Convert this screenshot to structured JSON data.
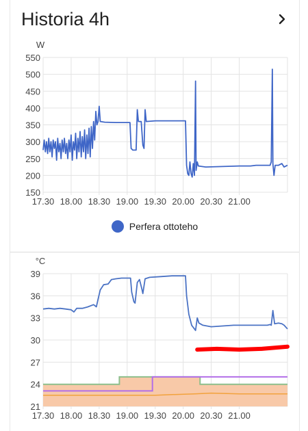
{
  "card": {
    "title": "Historia 4h",
    "nav_icon": "chevron-right-icon"
  },
  "colors": {
    "power_line": "#3f66c7",
    "temp_line": "#4a72c4",
    "green_line": "#8cbf8c",
    "purple_line": "#b26ee8",
    "orange_line": "#f2a23c",
    "fill": "#f8c9a8",
    "red_mark": "#ff0000",
    "grid": "#e3e3e3"
  },
  "chart_data": [
    {
      "type": "line",
      "unit_label": "W",
      "x_ticks": [
        "17.30",
        "18.00",
        "18.30",
        "19.00",
        "19.30",
        "20.00",
        "20.30",
        "21.00"
      ],
      "x_tick_hours": [
        17.5,
        18.0,
        18.5,
        19.0,
        19.5,
        20.0,
        20.5,
        21.0
      ],
      "xlim_hours": [
        17.5,
        21.86
      ],
      "y_ticks": [
        150,
        200,
        250,
        300,
        350,
        400,
        450,
        500,
        550
      ],
      "ylim": [
        150,
        550
      ],
      "grid": true,
      "legend": "bottom-center",
      "series": [
        {
          "name": "Perfera ottoteho",
          "points": [
            [
              17.5,
              275
            ],
            [
              17.52,
              305
            ],
            [
              17.54,
              270
            ],
            [
              17.56,
              300
            ],
            [
              17.58,
              265
            ],
            [
              17.6,
              310
            ],
            [
              17.62,
              270
            ],
            [
              17.64,
              300
            ],
            [
              17.66,
              255
            ],
            [
              17.68,
              305
            ],
            [
              17.7,
              280
            ],
            [
              17.72,
              300
            ],
            [
              17.74,
              245
            ],
            [
              17.76,
              310
            ],
            [
              17.78,
              270
            ],
            [
              17.8,
              295
            ],
            [
              17.82,
              250
            ],
            [
              17.84,
              305
            ],
            [
              17.86,
              270
            ],
            [
              17.88,
              310
            ],
            [
              17.9,
              265
            ],
            [
              17.92,
              295
            ],
            [
              17.94,
              250
            ],
            [
              17.96,
              305
            ],
            [
              17.98,
              270
            ],
            [
              18.0,
              320
            ],
            [
              18.02,
              245
            ],
            [
              18.04,
              300
            ],
            [
              18.06,
              275
            ],
            [
              18.08,
              325
            ],
            [
              18.1,
              250
            ],
            [
              18.12,
              310
            ],
            [
              18.14,
              270
            ],
            [
              18.16,
              330
            ],
            [
              18.18,
              255
            ],
            [
              18.2,
              315
            ],
            [
              18.22,
              270
            ],
            [
              18.24,
              335
            ],
            [
              18.26,
              250
            ],
            [
              18.28,
              320
            ],
            [
              18.3,
              265
            ],
            [
              18.32,
              340
            ],
            [
              18.34,
              255
            ],
            [
              18.36,
              345
            ],
            [
              18.38,
              280
            ],
            [
              18.4,
              360
            ],
            [
              18.42,
              305
            ],
            [
              18.44,
              390
            ],
            [
              18.46,
              350
            ],
            [
              18.48,
              360
            ],
            [
              18.5,
              405
            ],
            [
              18.52,
              360
            ],
            [
              18.6,
              358
            ],
            [
              18.8,
              357
            ],
            [
              19.0,
              357
            ],
            [
              19.05,
              357
            ],
            [
              19.07,
              280
            ],
            [
              19.1,
              275
            ],
            [
              19.16,
              275
            ],
            [
              19.18,
              395
            ],
            [
              19.2,
              360
            ],
            [
              19.25,
              360
            ],
            [
              19.28,
              290
            ],
            [
              19.3,
              280
            ],
            [
              19.32,
              395
            ],
            [
              19.34,
              360
            ],
            [
              19.5,
              362
            ],
            [
              19.7,
              362
            ],
            [
              19.95,
              362
            ],
            [
              20.04,
              362
            ],
            [
              20.06,
              230
            ],
            [
              20.08,
              205
            ],
            [
              20.1,
              200
            ],
            [
              20.12,
              240
            ],
            [
              20.14,
              205
            ],
            [
              20.16,
              195
            ],
            [
              20.18,
              235
            ],
            [
              20.2,
              200
            ],
            [
              20.22,
              480
            ],
            [
              20.23,
              215
            ],
            [
              20.25,
              240
            ],
            [
              20.27,
              228
            ],
            [
              20.4,
              225
            ],
            [
              20.6,
              226
            ],
            [
              20.8,
              227
            ],
            [
              21.0,
              228
            ],
            [
              21.1,
              228
            ],
            [
              21.2,
              228
            ],
            [
              21.3,
              230
            ],
            [
              21.4,
              230
            ],
            [
              21.5,
              230
            ],
            [
              21.55,
              230
            ],
            [
              21.57,
              240
            ],
            [
              21.59,
              515
            ],
            [
              21.6,
              235
            ],
            [
              21.62,
              200
            ],
            [
              21.64,
              230
            ],
            [
              21.7,
              230
            ],
            [
              21.76,
              235
            ],
            [
              21.8,
              225
            ],
            [
              21.86,
              230
            ]
          ]
        }
      ]
    },
    {
      "type": "line",
      "unit_label": "°C",
      "x_ticks": [
        "17.30",
        "18.00",
        "18.30",
        "19.00",
        "19.30",
        "20.00",
        "20.30",
        "21.00"
      ],
      "x_tick_hours": [
        17.5,
        18.0,
        18.5,
        19.0,
        19.5,
        20.0,
        20.5,
        21.0
      ],
      "xlim_hours": [
        17.5,
        21.86
      ],
      "y_ticks": [
        21,
        24,
        27,
        30,
        33,
        36,
        39
      ],
      "ylim": [
        21,
        39
      ],
      "grid": true,
      "series": [
        {
          "points": [
            [
              17.5,
              34.2
            ],
            [
              17.6,
              34.3
            ],
            [
              17.7,
              34.2
            ],
            [
              17.8,
              34.3
            ],
            [
              17.9,
              34.2
            ],
            [
              18.0,
              34.1
            ],
            [
              18.05,
              33.8
            ],
            [
              18.1,
              34.3
            ],
            [
              18.2,
              34.3
            ],
            [
              18.3,
              34.5
            ],
            [
              18.4,
              34.8
            ],
            [
              18.45,
              34.5
            ],
            [
              18.48,
              35.5
            ],
            [
              18.52,
              36.8
            ],
            [
              18.58,
              37.5
            ],
            [
              18.66,
              37.6
            ],
            [
              18.72,
              38.2
            ],
            [
              18.8,
              38.3
            ],
            [
              18.9,
              38.4
            ],
            [
              19.0,
              38.4
            ],
            [
              19.06,
              38.4
            ],
            [
              19.08,
              36.5
            ],
            [
              19.12,
              35.2
            ],
            [
              19.14,
              35.0
            ],
            [
              19.18,
              37.8
            ],
            [
              19.22,
              38.2
            ],
            [
              19.26,
              37.0
            ],
            [
              19.28,
              36.3
            ],
            [
              19.32,
              38.3
            ],
            [
              19.4,
              38.5
            ],
            [
              19.6,
              38.6
            ],
            [
              19.8,
              38.7
            ],
            [
              20.0,
              38.7
            ],
            [
              20.04,
              38.7
            ],
            [
              20.06,
              36.0
            ],
            [
              20.1,
              33.5
            ],
            [
              20.15,
              32.0
            ],
            [
              20.2,
              31.5
            ],
            [
              20.22,
              31.3
            ],
            [
              20.25,
              33.0
            ],
            [
              20.28,
              32.3
            ],
            [
              20.35,
              32.0
            ],
            [
              20.5,
              31.8
            ],
            [
              20.7,
              31.9
            ],
            [
              20.9,
              32.0
            ],
            [
              21.1,
              32.0
            ],
            [
              21.3,
              32.0
            ],
            [
              21.5,
              32.0
            ],
            [
              21.55,
              32.1
            ],
            [
              21.57,
              32.0
            ],
            [
              21.6,
              34.0
            ],
            [
              21.63,
              32.2
            ],
            [
              21.7,
              32.3
            ],
            [
              21.76,
              32.2
            ],
            [
              21.8,
              32.0
            ],
            [
              21.86,
              31.5
            ]
          ]
        },
        {
          "points": [
            [
              17.5,
              24.0
            ],
            [
              18.86,
              24.0
            ],
            [
              18.86,
              25.0
            ],
            [
              20.3,
              25.0
            ],
            [
              20.3,
              24.0
            ],
            [
              21.86,
              24.0
            ]
          ]
        },
        {
          "points": [
            [
              17.5,
              23.1
            ],
            [
              19.45,
              23.1
            ],
            [
              19.45,
              25.0
            ],
            [
              21.86,
              25.0
            ]
          ]
        },
        {
          "points": [
            [
              17.5,
              22.5
            ],
            [
              18.0,
              22.5
            ],
            [
              18.5,
              22.5
            ],
            [
              19.0,
              22.5
            ],
            [
              19.5,
              22.5
            ],
            [
              19.8,
              22.6
            ],
            [
              20.2,
              22.7
            ],
            [
              20.5,
              22.8
            ],
            [
              21.0,
              22.7
            ],
            [
              21.5,
              22.7
            ],
            [
              21.86,
              22.7
            ]
          ]
        }
      ],
      "fill_region": [
        [
          17.5,
          24.0
        ],
        [
          18.86,
          24.0
        ],
        [
          18.86,
          25.0
        ],
        [
          20.3,
          25.0
        ],
        [
          20.3,
          24.0
        ],
        [
          21.86,
          24.0
        ]
      ],
      "red_mark": [
        [
          20.25,
          28.7
        ],
        [
          20.6,
          28.8
        ],
        [
          21.0,
          28.7
        ],
        [
          21.4,
          28.8
        ],
        [
          21.86,
          29.1
        ]
      ]
    }
  ]
}
